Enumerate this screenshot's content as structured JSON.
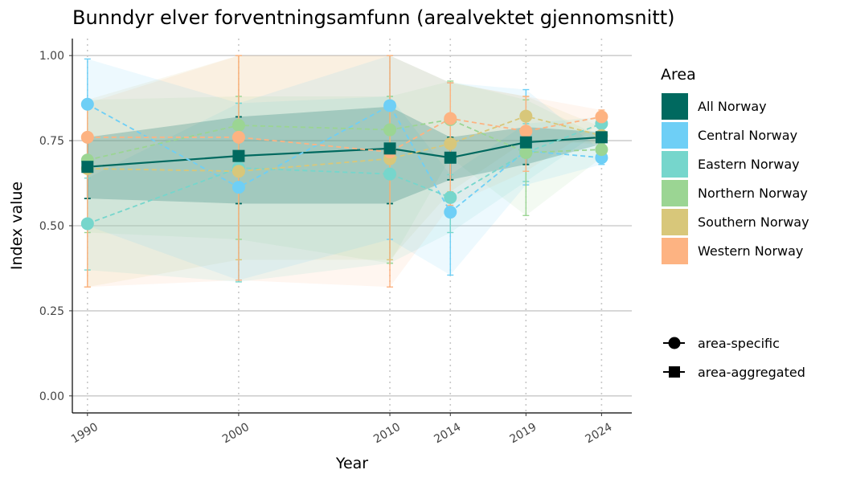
{
  "chart_data": {
    "type": "line",
    "title": "Bunndyr elver forventningsamfunn (arealvektet gjennomsnitt)",
    "xlabel": "Year",
    "ylabel": "Index value",
    "x": [
      1990,
      2000,
      2010,
      2014,
      2019,
      2024
    ],
    "x_tick_labels": [
      "1990",
      "2000",
      "2010",
      "2014",
      "2019",
      "2024"
    ],
    "xlim": [
      1989,
      2026
    ],
    "ylim": [
      -0.05,
      1.05
    ],
    "y_ticks": [
      0.0,
      0.25,
      0.5,
      0.75,
      1.0
    ],
    "y_tick_labels": [
      "0.00",
      "0.25",
      "0.50",
      "0.75",
      "1.00"
    ],
    "grid": "horizontal major lines, dotted vertical lines at data years",
    "legend_position": "right",
    "legend_title": "Area",
    "series": [
      {
        "name": "All Norway",
        "color": "#00695f",
        "kind": "area-aggregated",
        "marker": "square",
        "values": [
          0.673,
          0.705,
          0.727,
          0.7,
          0.745,
          0.76
        ],
        "lower": [
          0.58,
          0.565,
          0.565,
          0.635,
          0.68,
          0.74
        ],
        "upper": [
          0.76,
          0.82,
          0.85,
          0.76,
          0.79,
          0.775
        ]
      },
      {
        "name": "Central Norway",
        "color": "#6ecff6",
        "kind": "area-specific",
        "marker": "circle",
        "values": [
          0.857,
          0.613,
          0.853,
          0.54,
          0.72,
          0.7
        ],
        "lower": [
          0.5,
          0.34,
          0.46,
          0.355,
          0.62,
          0.68
        ],
        "upper": [
          0.99,
          0.86,
          1.0,
          0.92,
          0.9,
          0.72
        ]
      },
      {
        "name": "Eastern Norway",
        "color": "#76d6cc",
        "kind": "area-specific",
        "marker": "circle",
        "values": [
          0.506,
          0.67,
          0.652,
          0.583,
          0.715,
          0.8
        ],
        "lower": [
          0.37,
          0.335,
          0.39,
          0.48,
          0.63,
          0.78
        ],
        "upper": [
          0.64,
          0.86,
          0.88,
          0.65,
          0.8,
          0.82
        ]
      },
      {
        "name": "Northern Norway",
        "color": "#9bd593",
        "kind": "area-specific",
        "marker": "circle",
        "values": [
          0.693,
          0.795,
          0.782,
          0.812,
          0.715,
          0.724
        ],
        "lower": [
          0.48,
          0.46,
          0.39,
          0.7,
          0.53,
          0.7
        ],
        "upper": [
          0.87,
          0.88,
          0.88,
          0.925,
          0.87,
          0.76
        ]
      },
      {
        "name": "Southern Norway",
        "color": "#d8c77a",
        "kind": "area-specific",
        "marker": "circle",
        "values": [
          0.668,
          0.66,
          0.697,
          0.741,
          0.822,
          0.765
        ],
        "lower": [
          0.32,
          0.4,
          0.4,
          0.6,
          0.75,
          0.74
        ],
        "upper": [
          0.87,
          1.0,
          1.0,
          0.92,
          0.88,
          0.79
        ]
      },
      {
        "name": "Western Norway",
        "color": "#fdb382",
        "kind": "area-specific",
        "marker": "circle",
        "values": [
          0.76,
          0.76,
          0.717,
          0.815,
          0.778,
          0.82
        ],
        "lower": [
          0.32,
          0.34,
          0.32,
          0.56,
          0.66,
          0.8
        ],
        "upper": [
          0.86,
          1.0,
          1.0,
          0.92,
          0.88,
          0.84
        ]
      }
    ],
    "shape_legend": [
      {
        "label": "area-specific",
        "marker": "circle"
      },
      {
        "label": "area-aggregated",
        "marker": "square"
      }
    ]
  }
}
